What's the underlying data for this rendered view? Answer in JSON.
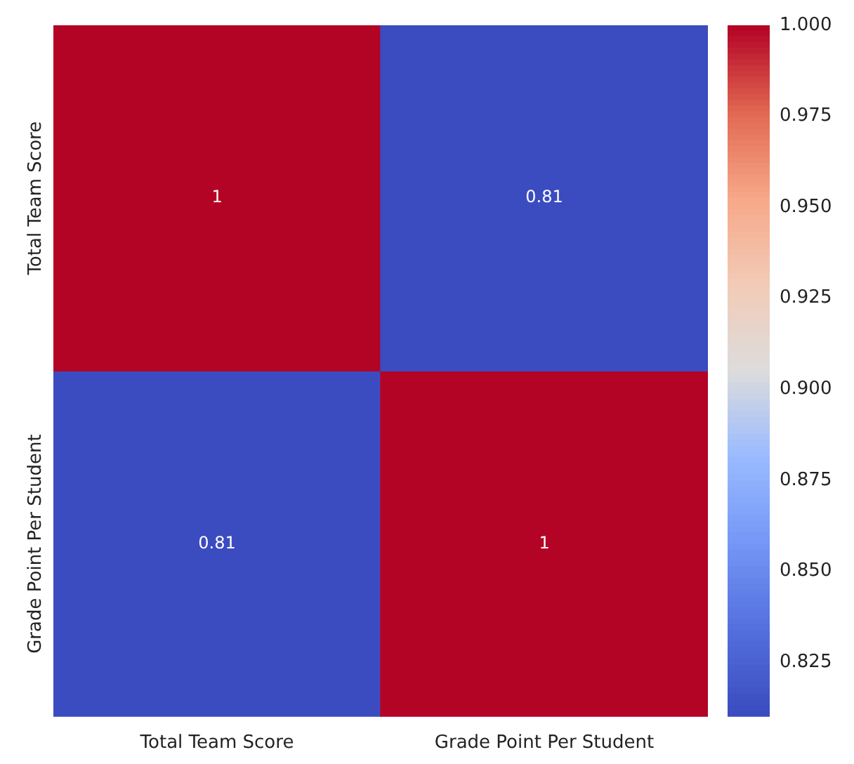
{
  "chart_data": {
    "type": "heatmap",
    "categories": [
      "Total Team Score",
      "Grade Point Per Student"
    ],
    "y_categories": [
      "Total Team Score",
      "Grade Point Per Student"
    ],
    "cells": [
      [
        1,
        0.81
      ],
      [
        0.81,
        1
      ]
    ],
    "data_labels": true,
    "clim": [
      0.81,
      1.0
    ],
    "cticks": [
      {
        "value": 0.825,
        "label": "0.825"
      },
      {
        "value": 0.85,
        "label": "0.850"
      },
      {
        "value": 0.875,
        "label": "0.875"
      },
      {
        "value": 0.9,
        "label": "0.900"
      },
      {
        "value": 0.925,
        "label": "0.925"
      },
      {
        "value": 0.95,
        "label": "0.950"
      },
      {
        "value": 0.975,
        "label": "0.975"
      },
      {
        "value": 1.0,
        "label": "1.000"
      }
    ]
  }
}
